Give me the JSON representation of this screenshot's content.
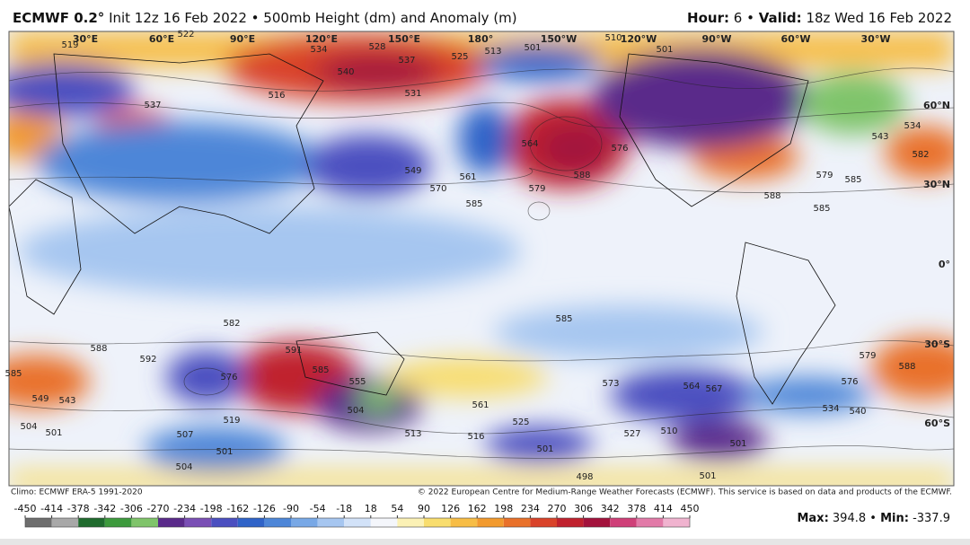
{
  "header": {
    "model": "ECMWF 0.2°",
    "run": "Init 12z 16 Feb 2022 • 500mb Height (dm) and Anomaly (m)",
    "hour_label": "Hour:",
    "hour": "6 •",
    "valid_label": "Valid:",
    "valid": "18z Wed 16 Feb 2022"
  },
  "map": {
    "longitudes": [
      "30°E",
      "60°E",
      "90°E",
      "120°E",
      "150°E",
      "180°",
      "150°W",
      "120°W",
      "90°W",
      "60°W",
      "30°W"
    ],
    "latitudes": [
      "60°N",
      "30°N",
      "0°",
      "30°S",
      "60°S"
    ],
    "contour_labels": [
      "519",
      "522",
      "534",
      "528",
      "537",
      "540",
      "525",
      "513",
      "501",
      "510",
      "501",
      "516",
      "531",
      "537",
      "564",
      "576",
      "588",
      "549",
      "561",
      "570",
      "579",
      "585",
      "588",
      "579",
      "582",
      "543",
      "534",
      "585",
      "585",
      "591",
      "588",
      "592",
      "585",
      "576",
      "549",
      "543",
      "555",
      "504",
      "561",
      "573",
      "564",
      "567",
      "519",
      "504",
      "501",
      "513",
      "516",
      "525",
      "527",
      "510",
      "501",
      "534",
      "540",
      "576",
      "588",
      "501",
      "504",
      "501",
      "498",
      "501",
      "507",
      "585",
      "582",
      "579",
      "585"
    ]
  },
  "footer": {
    "climo": "Climo: ECMWF ERA-5 1991-2020",
    "copyright": "© 2022 European Centre for Medium-Range Weather Forecasts (ECMWF). This service is based on data and products of the ECMWF."
  },
  "colorbar": {
    "ticks": [
      -450,
      -414,
      -378,
      -342,
      -306,
      -270,
      -234,
      -198,
      -162,
      -126,
      -90,
      -54,
      -18,
      18,
      54,
      90,
      126,
      162,
      198,
      234,
      270,
      306,
      342,
      378,
      414,
      450
    ],
    "colors": [
      "#6e6e6e",
      "#a8a8a8",
      "#1f6b2e",
      "#3d9a3d",
      "#7fc46a",
      "#5a2a8a",
      "#7a4fb5",
      "#4b4fc0",
      "#2f63c8",
      "#4d86d8",
      "#78a8e6",
      "#a6c6f0",
      "#d2e2f8",
      "#f4f6fb",
      "#fbf1b5",
      "#f8dd6e",
      "#f7bd45",
      "#f29a2e",
      "#e9712a",
      "#d9432a",
      "#c0212e",
      "#a3123c",
      "#cf3f78",
      "#e27aa8",
      "#f0b3cf"
    ]
  },
  "stats": {
    "max_label": "Max:",
    "max": "394.8",
    "sep": "•",
    "min_label": "Min:",
    "min": "-337.9"
  }
}
